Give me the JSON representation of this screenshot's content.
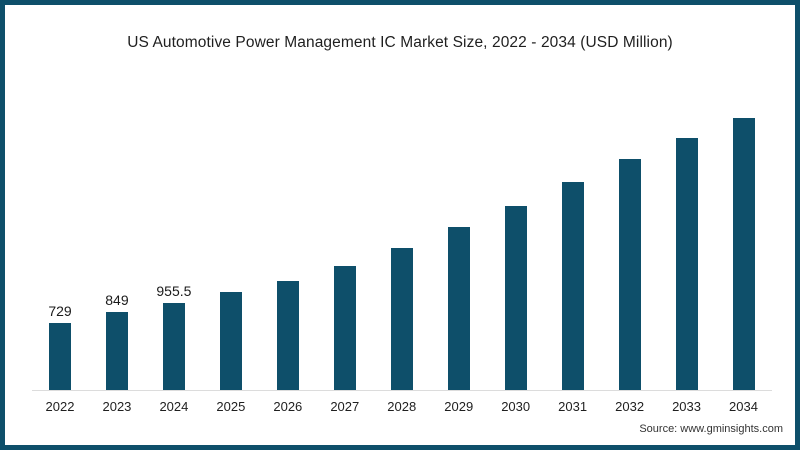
{
  "frame": {
    "border_color": "#0e4f6a"
  },
  "chart": {
    "title": "US Automotive Power Management IC Market Size, 2022 - 2034 (USD Million)",
    "source": "Source: www.gminsights.com",
    "bar_color": "#0e4f6a",
    "axis_color": "#dcdcdc",
    "label_color": "#1a1a1a"
  },
  "chart_data": {
    "type": "bar",
    "title": "US Automotive Power Management IC Market Size, 2022 - 2034 (USD Million)",
    "categories": [
      "2022",
      "2023",
      "2024",
      "2025",
      "2026",
      "2027",
      "2028",
      "2029",
      "2030",
      "2031",
      "2032",
      "2033",
      "2034"
    ],
    "values": [
      729,
      849,
      955.5,
      1075,
      1195,
      1360,
      1555,
      1780,
      2015,
      2280,
      2530,
      2760,
      2980
    ],
    "data_labels": [
      "729",
      "849",
      "955.5",
      "",
      "",
      "",
      "",
      "",
      "",
      "",
      "",
      "",
      ""
    ],
    "xlabel": "",
    "ylabel": "",
    "ylim": [
      0,
      3300
    ],
    "grid": false,
    "legend": false,
    "bar_color": "#0e4f6a",
    "source": "Source: www.gminsights.com"
  }
}
